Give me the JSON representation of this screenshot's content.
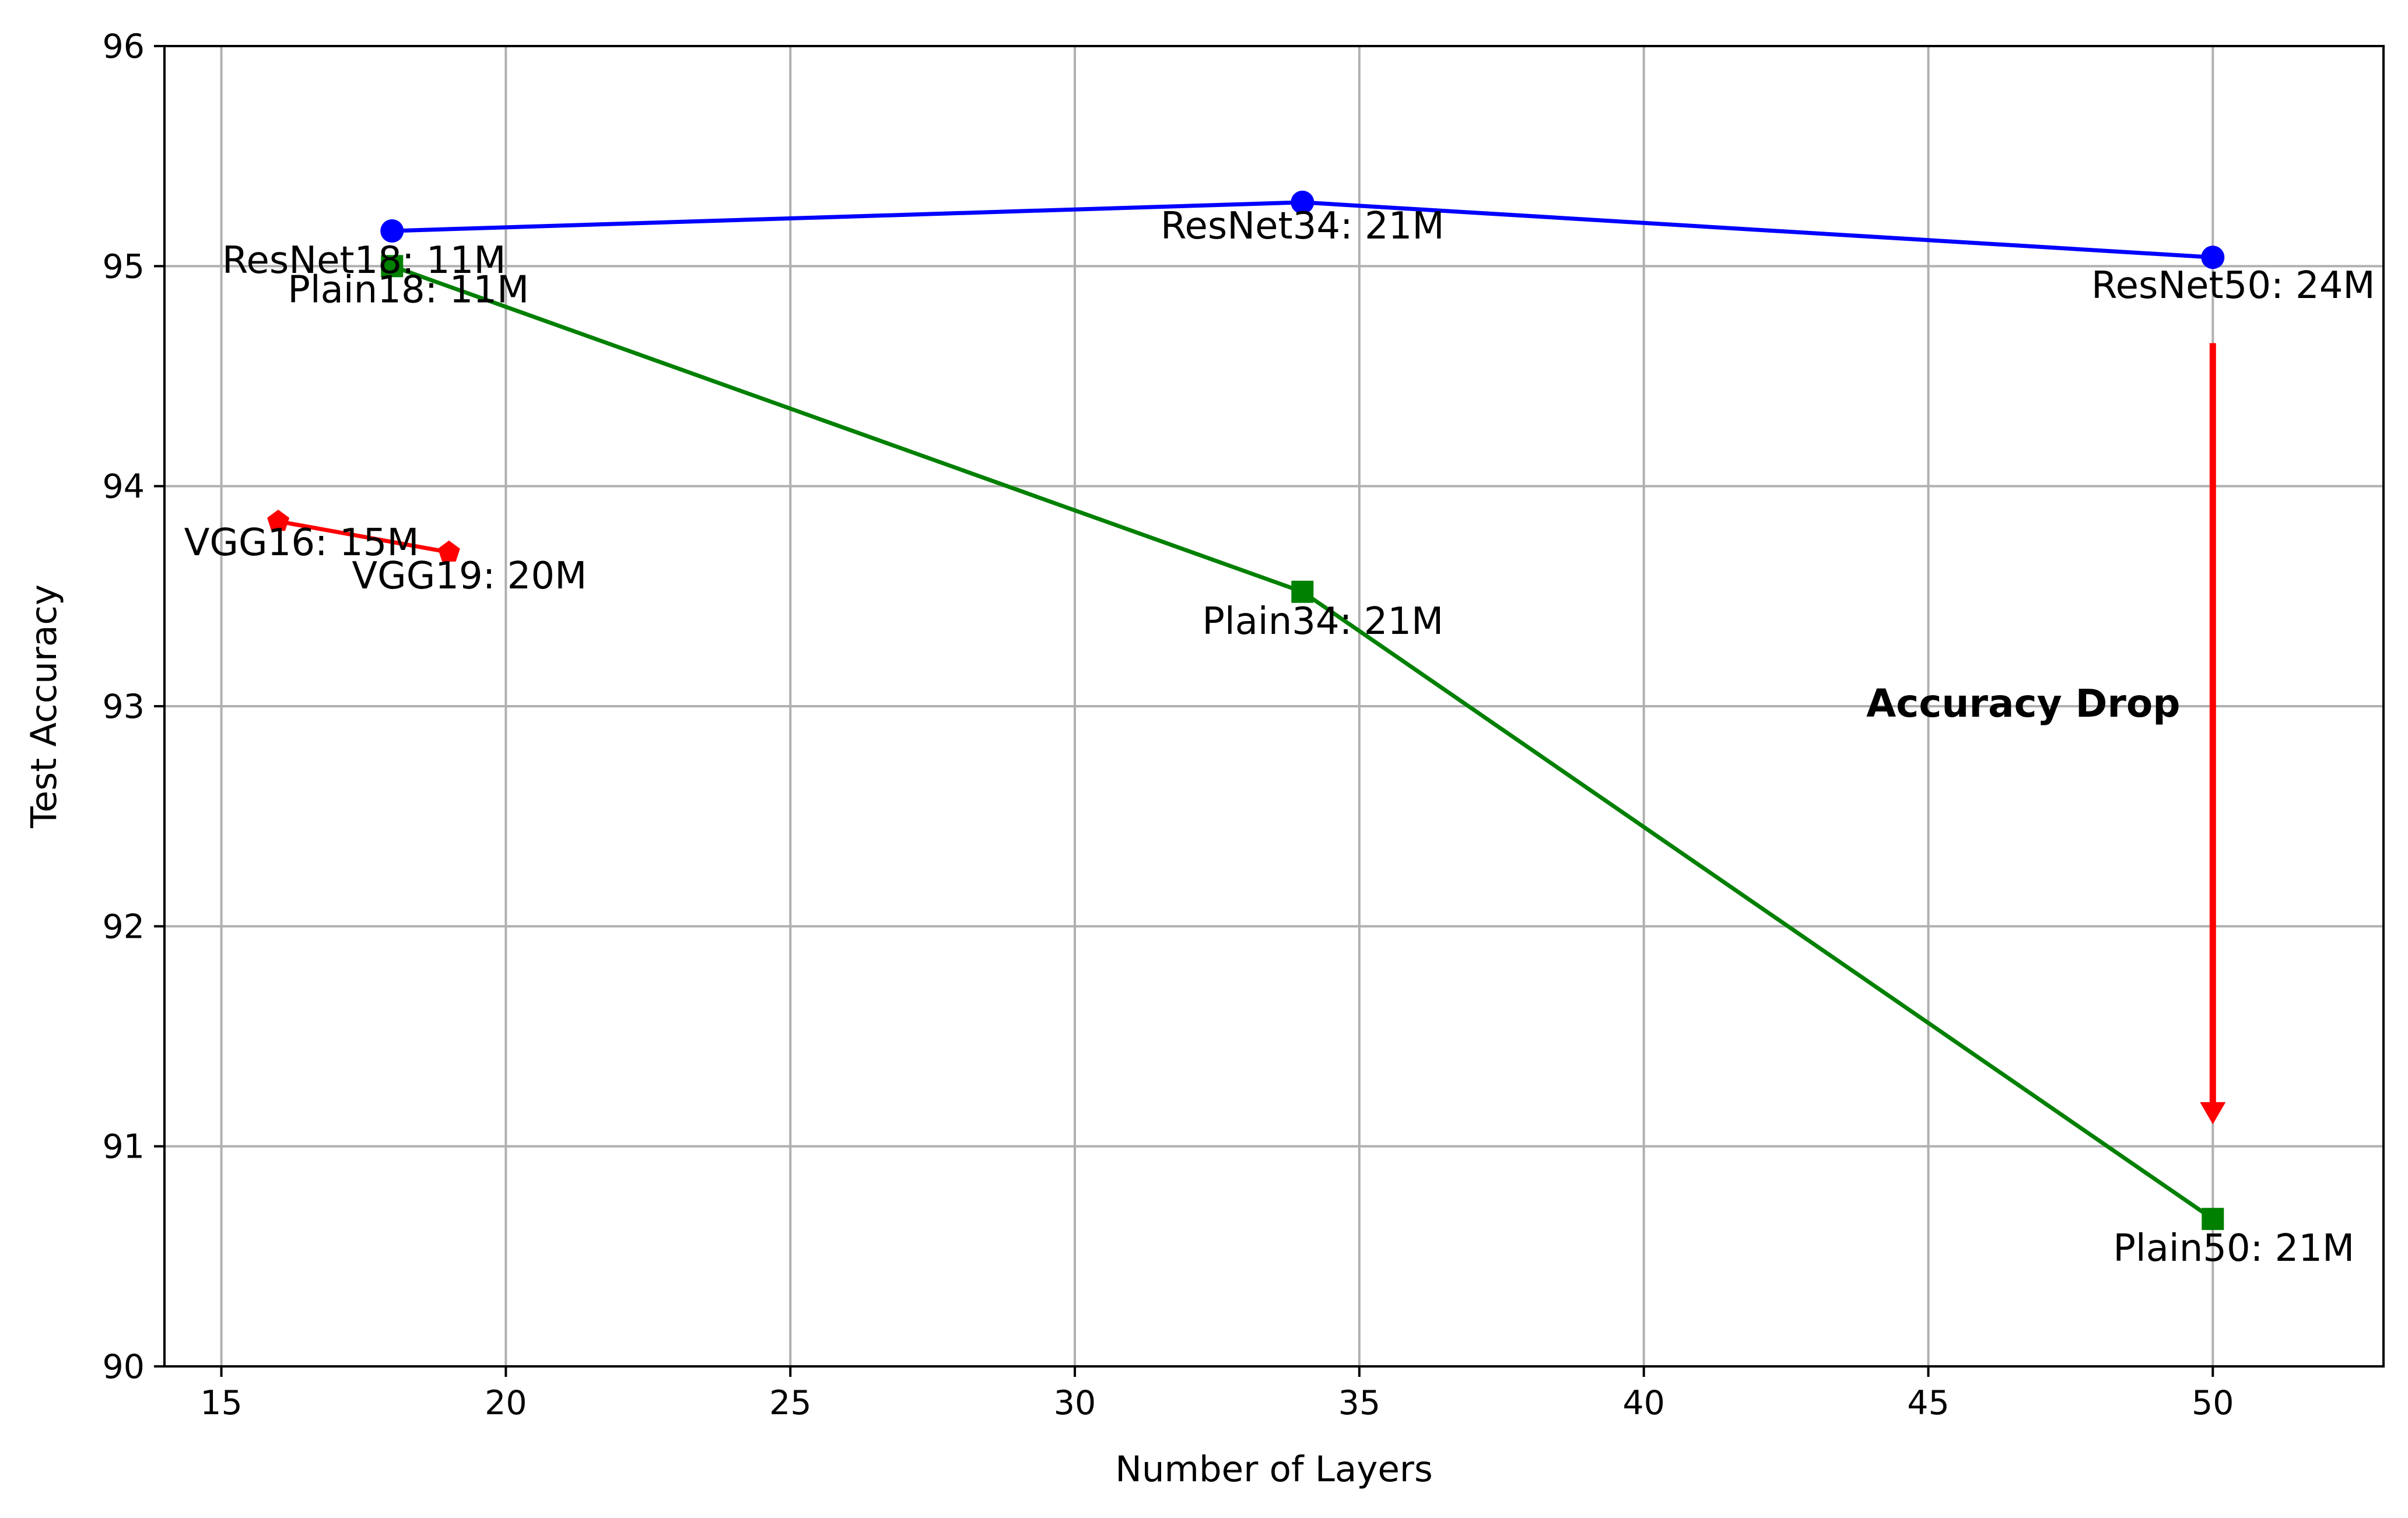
{
  "chart_data": {
    "type": "line",
    "title": "",
    "xlabel": "Number of Layers",
    "ylabel": "Test Accuracy",
    "xlim": [
      14,
      53
    ],
    "ylim": [
      90,
      96
    ],
    "xticks": [
      15,
      20,
      25,
      30,
      35,
      40,
      45,
      50
    ],
    "yticks": [
      90,
      91,
      92,
      93,
      94,
      95,
      96
    ],
    "grid": true,
    "series": [
      {
        "key": "resnet",
        "color": "#0000ff",
        "marker": "circle",
        "points": [
          {
            "x": 18,
            "y": 95.16,
            "label": "ResNet18: 11M"
          },
          {
            "x": 34,
            "y": 95.29,
            "label": "ResNet34: 21M"
          },
          {
            "x": 50,
            "y": 95.04,
            "label": "ResNet50: 24M"
          }
        ]
      },
      {
        "key": "plain",
        "color": "#008000",
        "marker": "square",
        "points": [
          {
            "x": 18,
            "y": 95.0,
            "label": "Plain18: 11M"
          },
          {
            "x": 34,
            "y": 93.52,
            "label": "Plain34: 21M"
          },
          {
            "x": 50,
            "y": 90.67,
            "label": "Plain50: 21M"
          }
        ]
      },
      {
        "key": "vgg",
        "color": "#ff0000",
        "marker": "pentagon",
        "points": [
          {
            "x": 16,
            "y": 93.84,
            "label": "VGG16: 15M"
          },
          {
            "x": 19,
            "y": 93.7,
            "label": "VGG19: 20M"
          }
        ]
      }
    ],
    "annotations": [
      {
        "text": "Accuracy Drop",
        "color": "#ff0000",
        "arrow_x": 50,
        "arrow_from_y": 94.65,
        "arrow_to_y": 91.1
      }
    ]
  }
}
